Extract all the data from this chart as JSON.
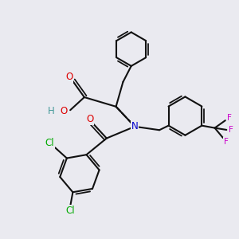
{
  "bg_color": "#eaeaf0",
  "bond_color": "#111111",
  "bond_width": 1.5,
  "atom_colors": {
    "O": "#dd0000",
    "N": "#0000cc",
    "Cl": "#00aa00",
    "F": "#cc00cc",
    "H": "#449999",
    "C": "#111111"
  },
  "font_size": 8.5,
  "font_size_cf3": 7.5
}
